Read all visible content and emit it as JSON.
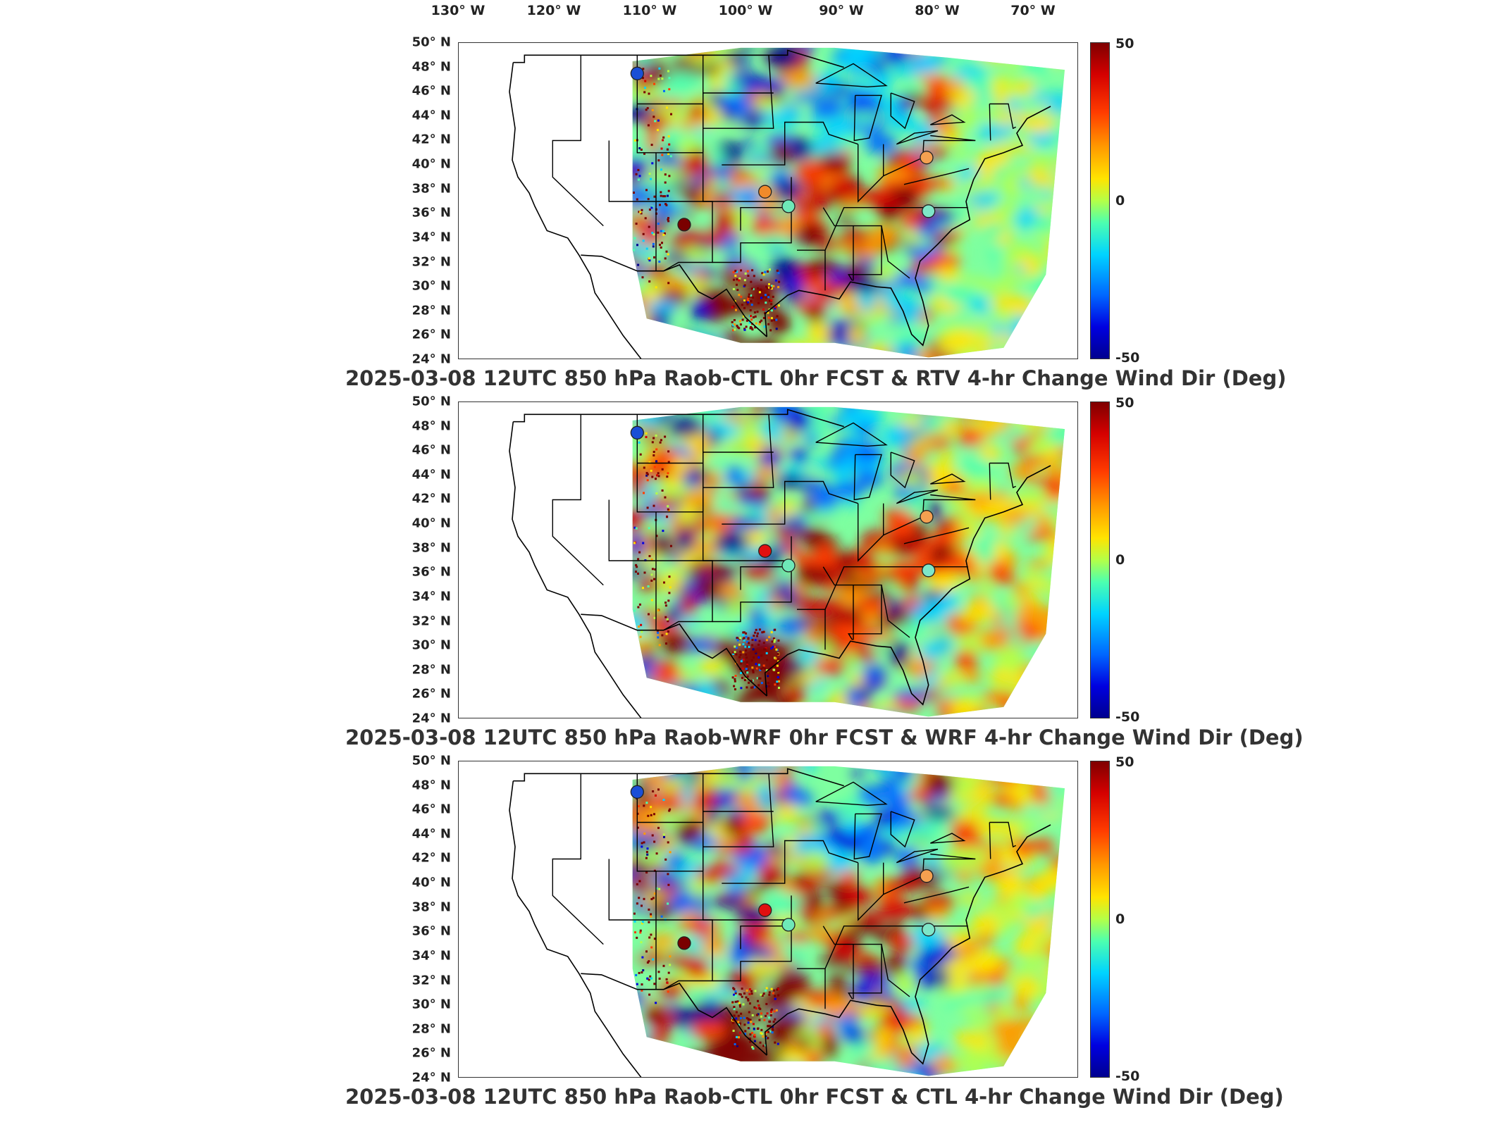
{
  "lon_ticks": [
    "130° W",
    "120° W",
    "110° W",
    "100° W",
    "90° W",
    "80° W",
    "70° W"
  ],
  "lat_ticks": [
    "50° N",
    "48° N",
    "46° N",
    "44° N",
    "42° N",
    "40° N",
    "38° N",
    "36° N",
    "34° N",
    "32° N",
    "30° N",
    "28° N",
    "26° N",
    "24° N"
  ],
  "colorbar": {
    "max": "50",
    "mid": "0",
    "min": "-50",
    "colormap": "jet",
    "colors": [
      "#7f0000",
      "#d40000",
      "#ff3c00",
      "#ff9a00",
      "#ffe400",
      "#b4ff48",
      "#4cffb0",
      "#00d4ff",
      "#0066ff",
      "#0000e0",
      "#00008f"
    ]
  },
  "panels": [
    {
      "title": "2025-03-08 12UTC 850 hPa Raob-CTL 0hr FCST & RTV 4-hr Change Wind Dir (Deg)",
      "stations": [
        {
          "lon": -111.0,
          "lat": 47.5,
          "color": "#1a4fd6"
        },
        {
          "lon": -106.0,
          "lat": 35.1,
          "color": "#7a0000"
        },
        {
          "lon": -97.4,
          "lat": 37.8,
          "color": "#f08a2a"
        },
        {
          "lon": -94.9,
          "lat": 36.6,
          "color": "#6ee8b8"
        },
        {
          "lon": -80.2,
          "lat": 40.6,
          "color": "#f5a050"
        },
        {
          "lon": -80.0,
          "lat": 36.2,
          "color": "#7ee6c8"
        }
      ]
    },
    {
      "title": "2025-03-08 12UTC 850 hPa Raob-WRF 0hr FCST & WRF 4-hr Change Wind Dir (Deg)",
      "stations": [
        {
          "lon": -111.0,
          "lat": 47.5,
          "color": "#1a4fd6"
        },
        {
          "lon": -97.4,
          "lat": 37.8,
          "color": "#e01010"
        },
        {
          "lon": -94.9,
          "lat": 36.6,
          "color": "#6ee8b8"
        },
        {
          "lon": -80.2,
          "lat": 40.6,
          "color": "#f5a050"
        },
        {
          "lon": -80.0,
          "lat": 36.2,
          "color": "#7ee6c8"
        }
      ]
    },
    {
      "title": "2025-03-08 12UTC 850 hPa Raob-CTL 0hr FCST & CTL 4-hr Change Wind Dir (Deg)",
      "stations": [
        {
          "lon": -111.0,
          "lat": 47.5,
          "color": "#1a4fd6"
        },
        {
          "lon": -106.0,
          "lat": 35.1,
          "color": "#7a0000"
        },
        {
          "lon": -97.4,
          "lat": 37.8,
          "color": "#e01010"
        },
        {
          "lon": -94.9,
          "lat": 36.6,
          "color": "#6ee8b8"
        },
        {
          "lon": -80.2,
          "lat": 40.6,
          "color": "#f5a050"
        },
        {
          "lon": -80.0,
          "lat": 36.2,
          "color": "#7ee6c8"
        }
      ]
    }
  ]
}
